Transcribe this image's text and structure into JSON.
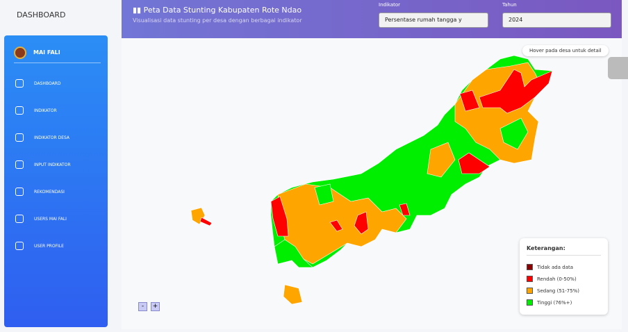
{
  "brand": "DASHBOARD",
  "sidebar": {
    "user": "MAI FALI",
    "items": [
      "DASHBOARD",
      "INDIKATOR",
      "INDIKATOR DESA",
      "INPUT INDIKATOR",
      "REKOMENDASI",
      "USERS MAI FALI",
      "USER PROFILE"
    ]
  },
  "header": {
    "title": "Peta Data Stunting Kabupaten Rote Ndao",
    "subtitle": "Visualisasi data stunting per desa dengan berbagai indikator",
    "indikator_label": "Indikator",
    "indikator_value": "Persentase rumah tangga y",
    "tahun_label": "Tahun",
    "tahun_value": "2024"
  },
  "map": {
    "hint": "Hover pada desa untuk detail",
    "zoom_out": "-",
    "zoom_in": "+"
  },
  "legend": {
    "title": "Keterangan:",
    "items": [
      "Tidak ada data",
      "Rendah (0-50%)",
      "Sedang (51-75%)",
      "Tinggi (76%+)"
    ]
  }
}
